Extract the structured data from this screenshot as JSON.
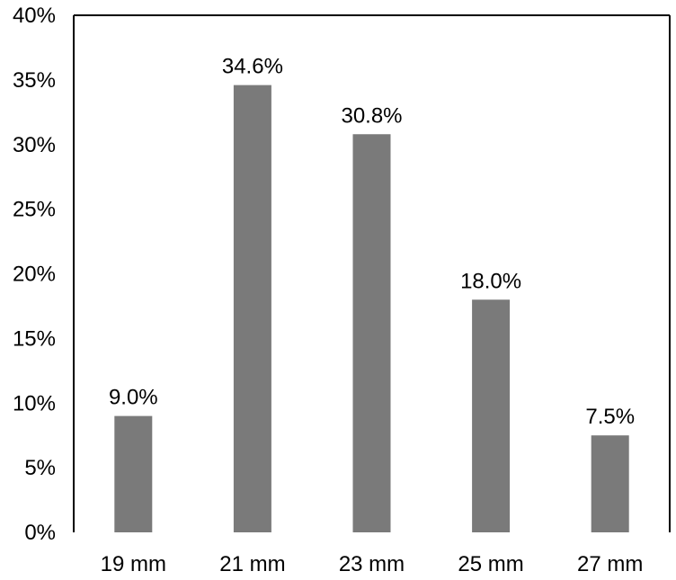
{
  "chart_data": {
    "type": "bar",
    "categories": [
      "19 mm",
      "21 mm",
      "23 mm",
      "25 mm",
      "27 mm"
    ],
    "values": [
      9.0,
      34.6,
      30.8,
      18.0,
      7.5
    ],
    "value_labels": [
      "9.0%",
      "34.6%",
      "30.8%",
      "18.0%",
      "7.5%"
    ],
    "y_ticks": [
      0,
      5,
      10,
      15,
      20,
      25,
      30,
      35,
      40
    ],
    "y_tick_labels": [
      "0%",
      "5%",
      "10%",
      "15%",
      "20%",
      "25%",
      "30%",
      "35%",
      "40%"
    ],
    "ylim": [
      0,
      40
    ],
    "grid": false,
    "bar_color": "#7a7a7a",
    "axis_color": "#000000"
  }
}
